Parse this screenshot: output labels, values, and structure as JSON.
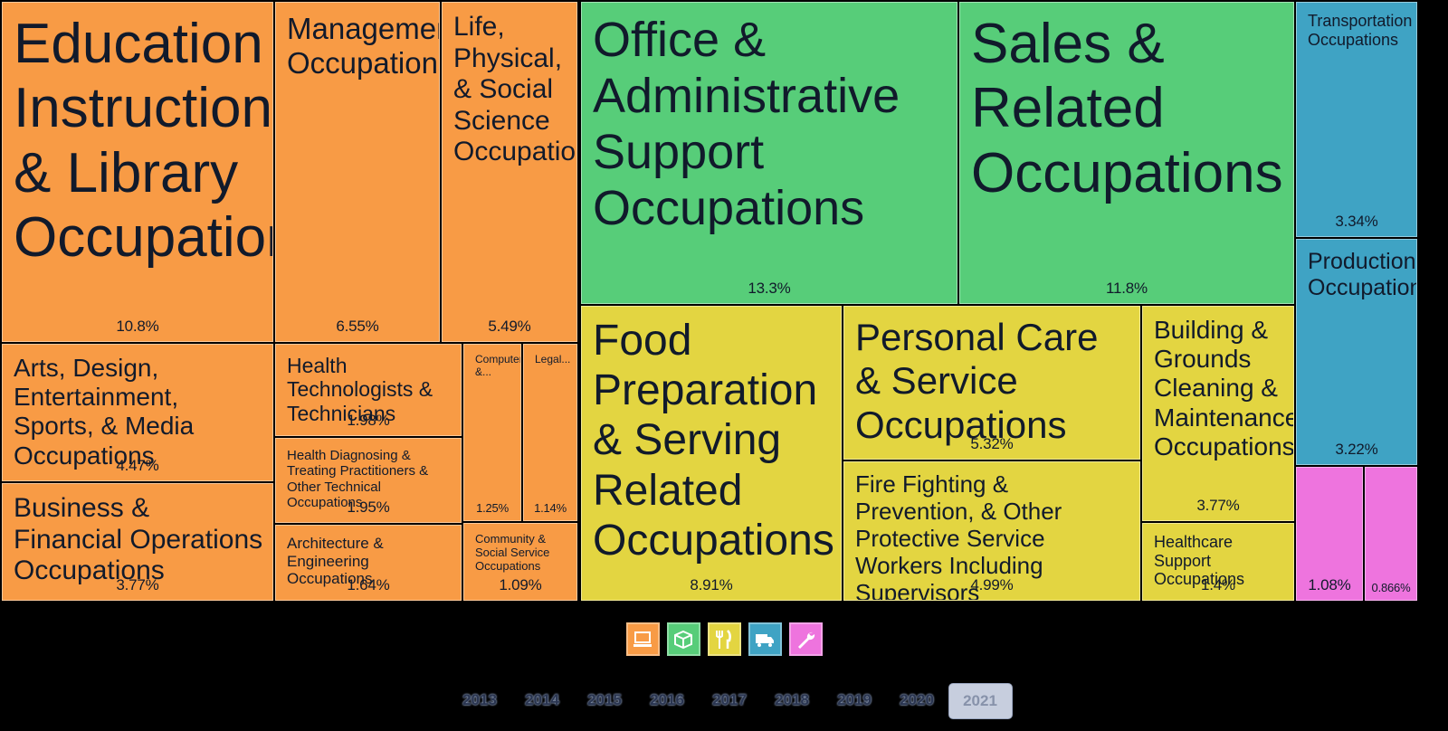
{
  "chart_data": {
    "type": "treemap",
    "groups": [
      {
        "name": "orange",
        "color": "#f89b45",
        "tiles": [
          {
            "label": "Education Instruction, & Library Occupations",
            "pct": "10.8%",
            "value": 10.8
          },
          {
            "label": "Management Occupations",
            "pct": "6.55%",
            "value": 6.55
          },
          {
            "label": "Life, Physical, & Social Science Occupations",
            "pct": "5.49%",
            "value": 5.49
          },
          {
            "label": "Arts, Design, Entertainment, Sports, & Media Occupations",
            "pct": "4.47%",
            "value": 4.47
          },
          {
            "label": "Health Technologists & Technicians",
            "pct": "1.98%",
            "value": 1.98
          },
          {
            "label": "Computer &...",
            "pct": "1.25%",
            "value": 1.25
          },
          {
            "label": "Legal...",
            "pct": "1.14%",
            "value": 1.14
          },
          {
            "label": "Health Diagnosing & Treating Practitioners & Other Technical Occupations",
            "pct": "1.95%",
            "value": 1.95
          },
          {
            "label": "Business & Financial Operations Occupations",
            "pct": "3.77%",
            "value": 3.77
          },
          {
            "label": "Architecture & Engineering Occupations",
            "pct": "1.64%",
            "value": 1.64
          },
          {
            "label": "Community & Social Service Occupations",
            "pct": "1.09%",
            "value": 1.09
          }
        ]
      },
      {
        "name": "green",
        "color": "#57cd79",
        "tiles": [
          {
            "label": "Office & Administrative Support Occupations",
            "pct": "13.3%",
            "value": 13.3
          },
          {
            "label": "Sales & Related Occupations",
            "pct": "11.8%",
            "value": 11.8
          }
        ]
      },
      {
        "name": "yellow",
        "color": "#e3d541",
        "tiles": [
          {
            "label": "Food Preparation & Serving Related Occupations",
            "pct": "8.91%",
            "value": 8.91
          },
          {
            "label": "Personal Care & Service Occupations",
            "pct": "5.32%",
            "value": 5.32
          },
          {
            "label": "Fire Fighting & Prevention, & Other Protective Service Workers Including Supervisors",
            "pct": "4.99%",
            "value": 4.99
          },
          {
            "label": "Building & Grounds Cleaning & Maintenance Occupations",
            "pct": "3.77%",
            "value": 3.77
          },
          {
            "label": "Healthcare Support Occupations",
            "pct": "1.4%",
            "value": 1.4
          }
        ]
      },
      {
        "name": "blue",
        "color": "#3fa3c4",
        "tiles": [
          {
            "label": "Transportation Occupations",
            "pct": "3.34%",
            "value": 3.34
          },
          {
            "label": "Production Occupations",
            "pct": "3.22%",
            "value": 3.22
          }
        ]
      },
      {
        "name": "pink",
        "color": "#ee74de",
        "tiles": [
          {
            "label": "",
            "pct": "1.08%",
            "value": 1.08
          },
          {
            "label": "",
            "pct": "0.866%",
            "value": 0.866
          }
        ]
      }
    ]
  },
  "legend": [
    {
      "icon": "computer-icon",
      "color": "#f89b45"
    },
    {
      "icon": "box-icon",
      "color": "#57cd79"
    },
    {
      "icon": "utensils-icon",
      "color": "#e3d541"
    },
    {
      "icon": "truck-icon",
      "color": "#3fa3c4"
    },
    {
      "icon": "wrench-icon",
      "color": "#ee74de"
    }
  ],
  "years": [
    "2013",
    "2014",
    "2015",
    "2016",
    "2017",
    "2018",
    "2019",
    "2020",
    "2021"
  ],
  "selected_year": "2021"
}
